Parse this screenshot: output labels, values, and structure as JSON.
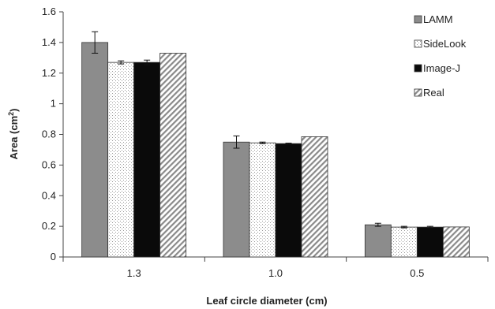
{
  "chart_data": {
    "type": "bar",
    "title": "",
    "xlabel": "Leaf circle diameter (cm)",
    "ylabel_main": "Area (cm",
    "ylabel_sup": "2",
    "ylabel_tail": ")",
    "ylim": [
      0,
      1.6
    ],
    "yticks": [
      "0",
      "0.2",
      "0.4",
      "0.6",
      "0.8",
      "1",
      "1.2",
      "1.4",
      "1.6"
    ],
    "categories": [
      "1.3",
      "1.0",
      "0.5"
    ],
    "series": [
      {
        "name": "LAMM",
        "values": [
          1.4,
          0.75,
          0.21
        ],
        "errors": [
          0.07,
          0.04,
          0.01
        ],
        "fill": "gray"
      },
      {
        "name": "SideLook",
        "values": [
          1.27,
          0.745,
          0.195
        ],
        "errors": [
          0.01,
          0.005,
          0.005
        ],
        "fill": "dotted"
      },
      {
        "name": "Image-J",
        "values": [
          1.27,
          0.74,
          0.195
        ],
        "errors": [
          0.015,
          0.003,
          0.005
        ],
        "fill": "black"
      },
      {
        "name": "Real",
        "values": [
          1.33,
          0.785,
          0.196
        ],
        "errors": [
          0,
          0,
          0
        ],
        "fill": "hatched"
      }
    ],
    "legend_position": "top-right",
    "grid": false
  }
}
